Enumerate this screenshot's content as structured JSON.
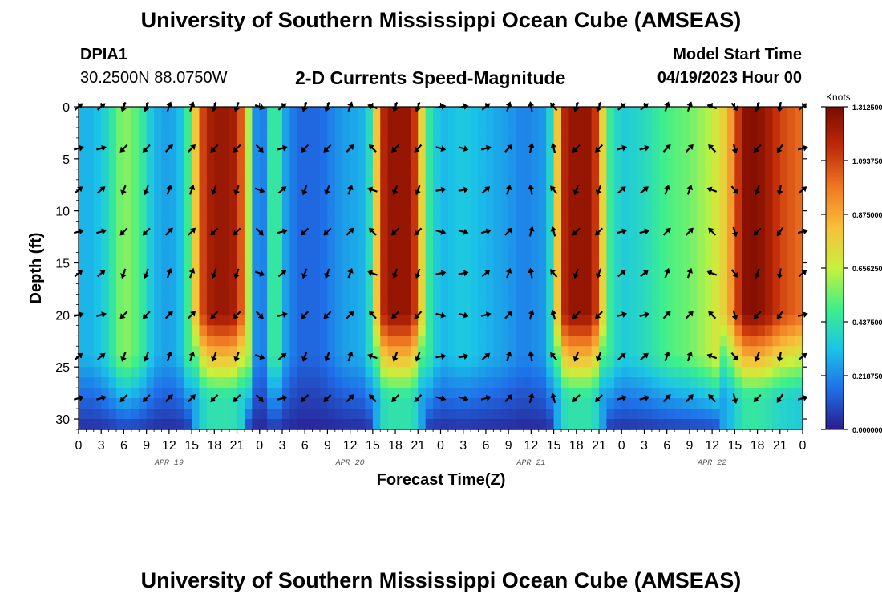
{
  "header": {
    "title": "University of Southern Mississippi Ocean Cube (AMSEAS)",
    "station_id": "DPIA1",
    "station_coords": "30.2500N  88.0750W",
    "plot_title": "2-D Currents Speed-Magnitude",
    "model_start_label": "Model Start Time",
    "model_start_value": "04/19/2023 Hour 00"
  },
  "footer": {
    "title": "University of Southern Mississippi Ocean Cube (AMSEAS)"
  },
  "colors": {
    "colormap": [
      "#2a1b8c",
      "#1f6fe8",
      "#1bc4e8",
      "#3ef08a",
      "#c8f03c",
      "#f8c03a",
      "#f07822",
      "#c02a08",
      "#7a0a00"
    ]
  },
  "chart_data": {
    "type": "heatmap",
    "title": "2-D Currents Speed-Magnitude",
    "xlabel": "Forecast Time(Z)",
    "ylabel": "Depth (ft)",
    "x_tick_labels": [
      "0",
      "3",
      "6",
      "9",
      "12",
      "15",
      "18",
      "21",
      "0",
      "3",
      "6",
      "9",
      "12",
      "15",
      "18",
      "21",
      "0",
      "3",
      "6",
      "9",
      "12",
      "15",
      "18",
      "21",
      "0",
      "3",
      "6",
      "9",
      "12",
      "15",
      "18",
      "21",
      "0"
    ],
    "date_labels": [
      {
        "label": "APR 19",
        "hour": 12
      },
      {
        "label": "APR 20",
        "hour": 36
      },
      {
        "label": "APR 21",
        "hour": 60
      },
      {
        "label": "APR 22",
        "hour": 84
      }
    ],
    "x_range_hours": [
      0,
      96
    ],
    "y_ticks": [
      0,
      5,
      10,
      15,
      20,
      25,
      30
    ],
    "ylim_ft": [
      0,
      31
    ],
    "depth_levels_ft": [
      0,
      4,
      8,
      12,
      16,
      20,
      24,
      28
    ],
    "colorbar": {
      "label": "Knots",
      "ticks": [
        "1.312500",
        "1.093750",
        "0.875000",
        "0.656250",
        "0.437500",
        "0.218750",
        "0.000000"
      ],
      "range": [
        0,
        1.3125
      ]
    },
    "speed_profile": [
      {
        "h": 0,
        "s": 0.3
      },
      {
        "h": 2,
        "s": 0.3
      },
      {
        "h": 4,
        "s": 0.4
      },
      {
        "h": 6,
        "s": 0.6
      },
      {
        "h": 8,
        "s": 0.5
      },
      {
        "h": 10,
        "s": 0.3
      },
      {
        "h": 12,
        "s": 0.25
      },
      {
        "h": 14,
        "s": 0.35
      },
      {
        "h": 15,
        "s": 0.6
      },
      {
        "h": 16,
        "s": 1.0
      },
      {
        "h": 17,
        "s": 1.2
      },
      {
        "h": 19,
        "s": 1.25
      },
      {
        "h": 21,
        "s": 1.2
      },
      {
        "h": 22,
        "s": 0.9
      },
      {
        "h": 23,
        "s": 0.35
      },
      {
        "h": 24,
        "s": 0.1
      },
      {
        "h": 25,
        "s": 0.3
      },
      {
        "h": 26,
        "s": 0.6
      },
      {
        "h": 27,
        "s": 0.3
      },
      {
        "h": 29,
        "s": 0.15
      },
      {
        "h": 32,
        "s": 0.15
      },
      {
        "h": 35,
        "s": 0.25
      },
      {
        "h": 38,
        "s": 0.3
      },
      {
        "h": 39,
        "s": 0.5
      },
      {
        "h": 40,
        "s": 1.1
      },
      {
        "h": 41,
        "s": 1.25
      },
      {
        "h": 44,
        "s": 1.25
      },
      {
        "h": 45,
        "s": 1.0
      },
      {
        "h": 46,
        "s": 0.5
      },
      {
        "h": 48,
        "s": 0.3
      },
      {
        "h": 51,
        "s": 0.35
      },
      {
        "h": 54,
        "s": 0.3
      },
      {
        "h": 57,
        "s": 0.25
      },
      {
        "h": 59,
        "s": 0.2
      },
      {
        "h": 62,
        "s": 0.25
      },
      {
        "h": 63,
        "s": 0.5
      },
      {
        "h": 64,
        "s": 1.1
      },
      {
        "h": 65,
        "s": 1.25
      },
      {
        "h": 68,
        "s": 1.25
      },
      {
        "h": 69,
        "s": 1.0
      },
      {
        "h": 70,
        "s": 0.5
      },
      {
        "h": 72,
        "s": 0.35
      },
      {
        "h": 75,
        "s": 0.4
      },
      {
        "h": 78,
        "s": 0.5
      },
      {
        "h": 81,
        "s": 0.55
      },
      {
        "h": 84,
        "s": 0.65
      },
      {
        "h": 86,
        "s": 0.8
      },
      {
        "h": 87,
        "s": 1.0
      },
      {
        "h": 88,
        "s": 1.25
      },
      {
        "h": 89,
        "s": 1.3
      },
      {
        "h": 91,
        "s": 1.25
      },
      {
        "h": 93,
        "s": 1.1
      },
      {
        "h": 96,
        "s": 1.0
      }
    ],
    "arrow_hours": [
      0,
      3,
      6,
      9,
      12,
      15,
      18,
      21,
      24,
      27,
      30,
      33,
      36,
      39,
      42,
      45,
      48,
      51,
      54,
      57,
      60,
      63,
      66,
      69,
      72,
      75,
      78,
      81,
      84,
      87,
      90,
      93,
      96
    ],
    "arrow_directions_deg": [
      60,
      60,
      210,
      210,
      30,
      30,
      210,
      210,
      120,
      60,
      210,
      210,
      30,
      300,
      210,
      210,
      90,
      90,
      60,
      30,
      0,
      330,
      210,
      210,
      60,
      60,
      30,
      30,
      300,
      150,
      210,
      200,
      60
    ]
  }
}
